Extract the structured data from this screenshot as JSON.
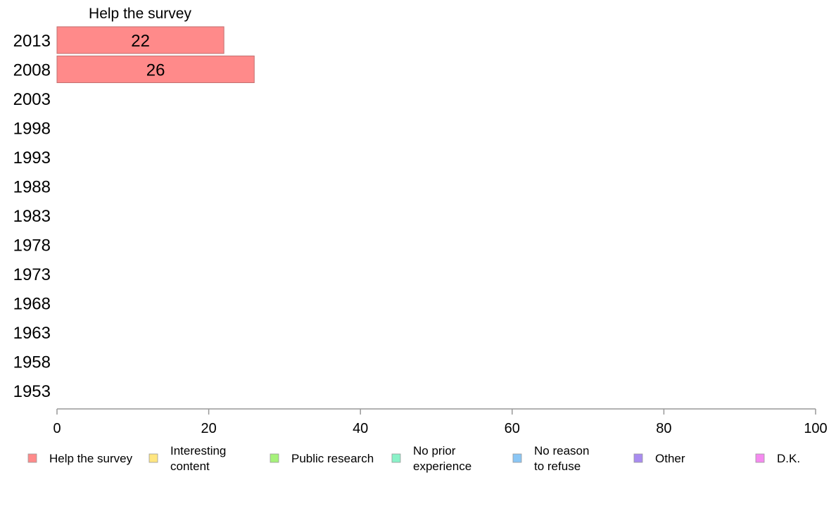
{
  "chart_data": {
    "type": "bar",
    "orientation": "horizontal",
    "categories": [
      "2013",
      "2008",
      "2003",
      "1998",
      "1993",
      "1988",
      "1983",
      "1978",
      "1973",
      "1968",
      "1963",
      "1958",
      "1953"
    ],
    "series": [
      {
        "name": "Help the survey",
        "values": [
          22,
          26,
          null,
          null,
          null,
          null,
          null,
          null,
          null,
          null,
          null,
          null,
          null
        ]
      }
    ],
    "data_labels": [
      "22",
      "26"
    ],
    "series_title": "Help the survey",
    "xlim": [
      0,
      100
    ],
    "xticks": [
      "0",
      "20",
      "40",
      "60",
      "80",
      "100"
    ],
    "grid": false,
    "legend_position": "bottom",
    "legend": [
      {
        "lines": [
          "Help the survey"
        ],
        "color": "#ff8a8a"
      },
      {
        "lines": [
          "Interesting",
          "content"
        ],
        "color": "#ffe680"
      },
      {
        "lines": [
          "Public research"
        ],
        "color": "#a6f27a"
      },
      {
        "lines": [
          "No prior",
          "experience"
        ],
        "color": "#8af2c8"
      },
      {
        "lines": [
          "No reason",
          "to refuse"
        ],
        "color": "#8ac6f5"
      },
      {
        "lines": [
          "Other"
        ],
        "color": "#a98cf0"
      },
      {
        "lines": [
          "D.K."
        ],
        "color": "#f58af0"
      }
    ],
    "bar_color": "#ff8a8a",
    "axis_color": "#999999"
  }
}
